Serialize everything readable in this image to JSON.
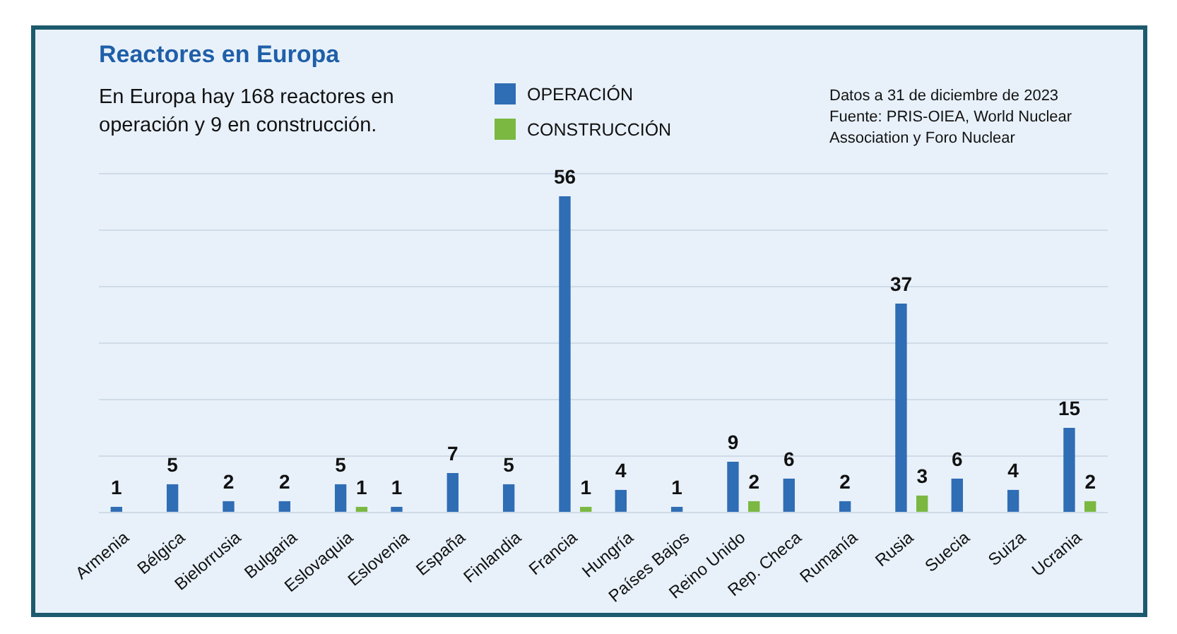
{
  "chart_data": {
    "type": "bar",
    "title": "Reactores en Europa",
    "subtitle": "En Europa hay 168 reactores en operación y 9 en construcción.",
    "annotations": [
      "Datos a 31 de diciembre de 2023",
      "Fuente: PRIS-OIEA, World Nuclear Association y Foro Nuclear"
    ],
    "categories": [
      "Armenia",
      "Bélgica",
      "Bielorrusia",
      "Bulgaria",
      "Eslovaquia",
      "Eslovenia",
      "España",
      "Finlandia",
      "Francia",
      "Hungría",
      "Países Bajos",
      "Reino Unido",
      "Rep. Checa",
      "Rumanía",
      "Rusia",
      "Suecia",
      "Suiza",
      "Ucrania"
    ],
    "series": [
      {
        "name": "OPERACIÓN",
        "color": "#2f6db5",
        "values": [
          1,
          5,
          2,
          2,
          5,
          1,
          7,
          5,
          56,
          4,
          1,
          9,
          6,
          2,
          37,
          6,
          4,
          15
        ]
      },
      {
        "name": "CONSTRUCCIÓN",
        "color": "#7ab841",
        "values": [
          null,
          null,
          null,
          null,
          1,
          null,
          null,
          null,
          1,
          null,
          null,
          2,
          null,
          null,
          3,
          null,
          null,
          2
        ]
      }
    ],
    "ylim": [
      0,
      60
    ],
    "yticks": [
      {
        "value": 0,
        "label": null
      },
      {
        "value": 10,
        "label": null
      },
      {
        "value": 20,
        "label": null
      },
      {
        "value": 30,
        "label": null
      },
      {
        "value": 40,
        "label": null
      },
      {
        "value": 50,
        "label": null
      },
      {
        "value": 60,
        "label": null
      }
    ],
    "grid": "y",
    "tick_labels": "x",
    "legend": "top",
    "data_labels": true
  }
}
